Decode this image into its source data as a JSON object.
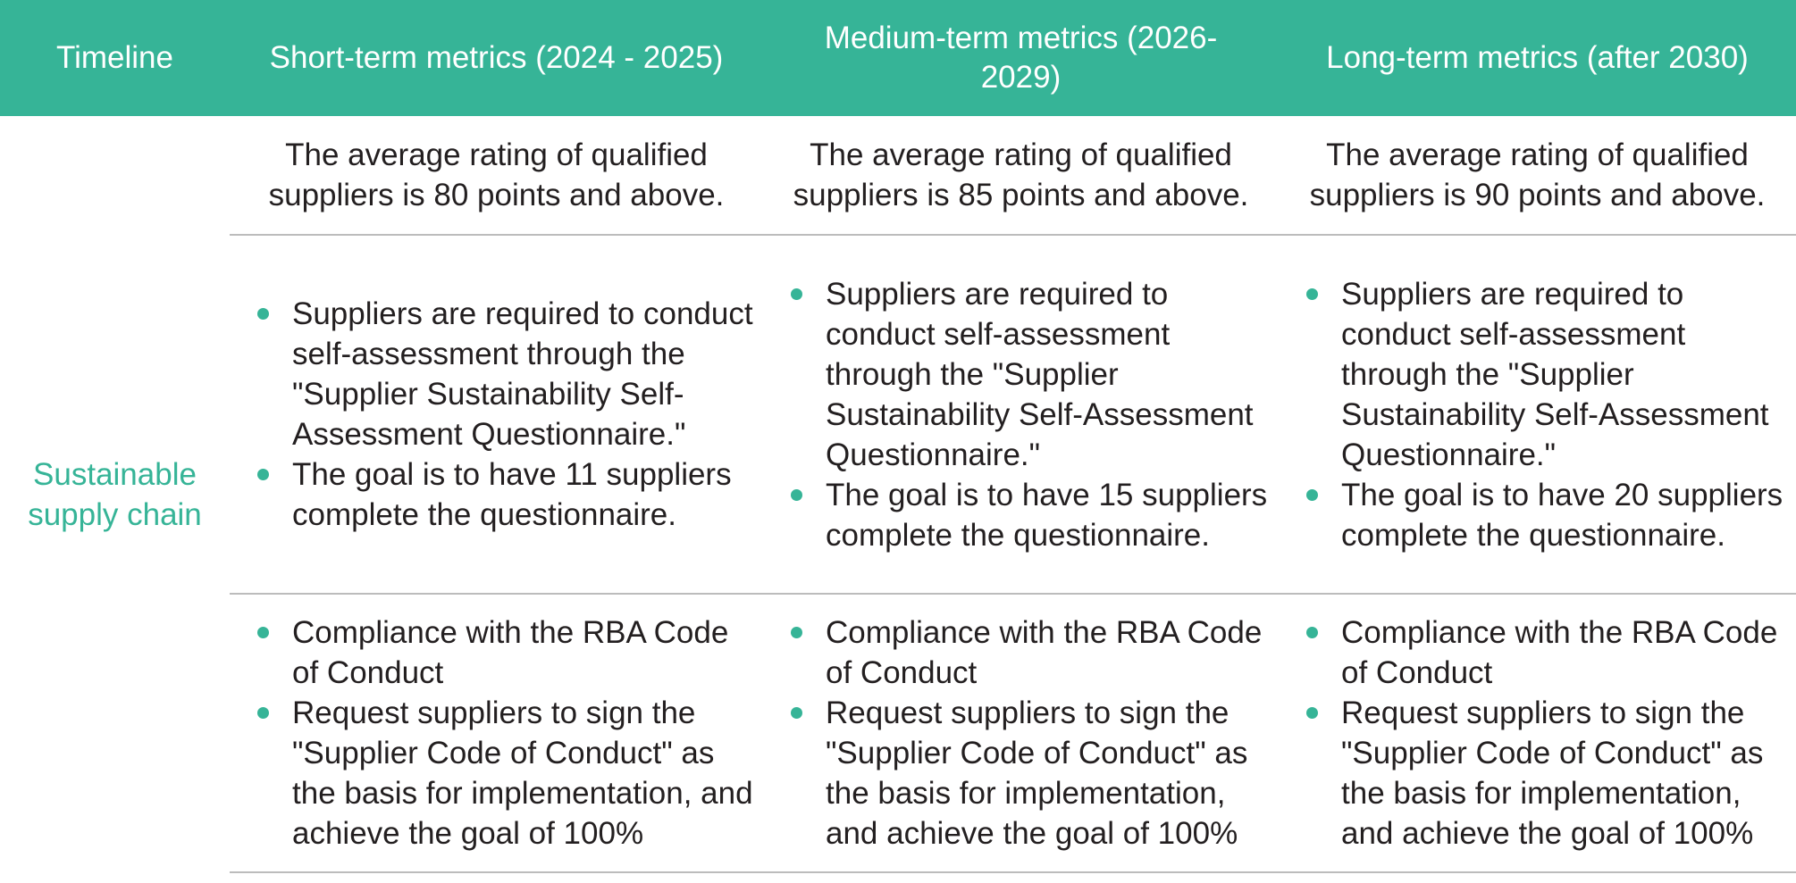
{
  "header": {
    "timeline": "Timeline",
    "short_term": "Short-term metrics (2024 - 2025)",
    "medium_term_line1": "Medium-term metrics (2026-",
    "medium_term_line2": "2029)",
    "long_term": "Long-term metrics (after 2030)"
  },
  "category": {
    "line1": "Sustainable",
    "line2": "supply chain"
  },
  "row1": {
    "short": {
      "line1": "The average rating of qualified",
      "line2": "suppliers is 80 points and above."
    },
    "medium": {
      "line1": "The average rating of qualified",
      "line2": "suppliers is 85 points and above."
    },
    "long": {
      "line1": "The average rating of qualified",
      "line2": "suppliers is 90 points and above."
    }
  },
  "row2": {
    "short": [
      "Suppliers are required to conduct self-assessment through the \"Supplier Sustainability Self-Assessment Questionnaire.\"",
      "The goal is to have 11 suppliers complete the questionnaire."
    ],
    "medium": [
      "Suppliers are required to conduct self-assessment through the \"Supplier Sustainability Self-Assessment Questionnaire.\"",
      "The goal is to have 15 suppliers complete the questionnaire."
    ],
    "long": [
      "Suppliers are required to conduct self-assessment through the \"Supplier Sustainability Self-Assessment Questionnaire.\"",
      "The goal is to have 20 suppliers complete the questionnaire."
    ]
  },
  "row3": {
    "short": [
      "Compliance with the RBA Code of Conduct",
      "Request suppliers to sign the \"Supplier Code of Conduct\" as the basis for implementation, and achieve the goal of 100%"
    ],
    "medium": [
      "Compliance with the RBA Code of Conduct",
      "Request suppliers to sign the \"Supplier Code of Conduct\" as the basis for implementation, and achieve the goal of 100%"
    ],
    "long": [
      "Compliance with the RBA Code of Conduct",
      "Request suppliers to sign the \"Supplier Code of Conduct\" as the basis for implementation, and achieve the goal of 100%"
    ]
  },
  "colors": {
    "accent": "#36b497",
    "header_text": "#ffffff",
    "body_text": "#231f20",
    "divider": "#bcbcbc"
  }
}
